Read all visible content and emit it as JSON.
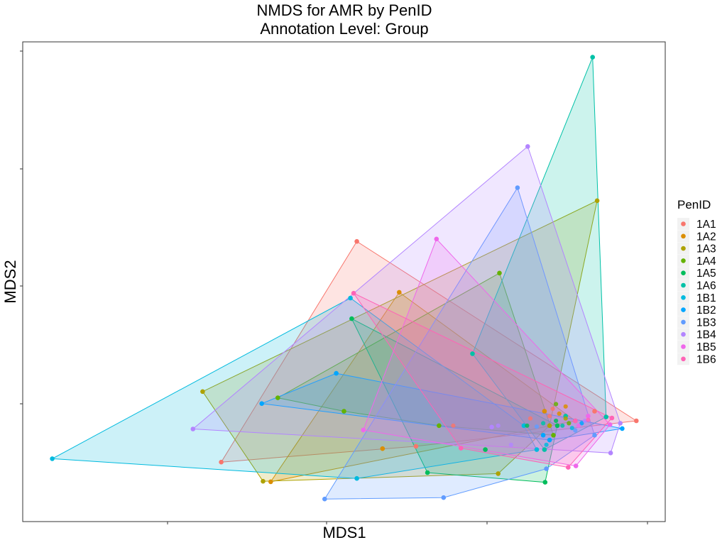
{
  "chart_data": {
    "type": "scatter",
    "title": "NMDS for AMR by PenID",
    "subtitle": "Annotation Level: Group",
    "xlabel": "MDS1",
    "ylabel": "MDS2",
    "xlim": [
      0,
      1000
    ],
    "ylim": [
      0,
      1000
    ],
    "x_tick_labels_shown": false,
    "y_tick_labels_shown": false,
    "grid": false,
    "hull": true,
    "legend": {
      "title": "PenID",
      "position": "right"
    },
    "series": [
      {
        "name": "1A1",
        "color": "#F8766D",
        "points": [
          [
            520,
            584
          ],
          [
            955,
            210
          ],
          [
            612,
            157
          ],
          [
            309,
            124
          ],
          [
            890,
            230
          ]
        ]
      },
      {
        "name": "1A2",
        "color": "#DB8E00",
        "points": [
          [
            586,
            478
          ],
          [
            560,
            152
          ],
          [
            386,
            83
          ],
          [
            860,
            210
          ],
          [
            812,
            230
          ]
        ]
      },
      {
        "name": "1A3",
        "color": "#AEA200",
        "points": [
          [
            280,
            271
          ],
          [
            374,
            84
          ],
          [
            740,
            100
          ],
          [
            894,
            669
          ],
          [
            820,
            200
          ]
        ]
      },
      {
        "name": "1A4",
        "color": "#64B200",
        "points": [
          [
            397,
            258
          ],
          [
            742,
            518
          ],
          [
            826,
            180
          ],
          [
            648,
            200
          ],
          [
            500,
            230
          ]
        ]
      },
      {
        "name": "1A5",
        "color": "#00BD5C",
        "points": [
          [
            512,
            423
          ],
          [
            630,
            102
          ],
          [
            813,
            82
          ],
          [
            832,
            200
          ],
          [
            720,
            150
          ]
        ]
      },
      {
        "name": "1A6",
        "color": "#00C1A7",
        "points": [
          [
            887,
            968
          ],
          [
            908,
            218
          ],
          [
            812,
            150
          ],
          [
            700,
            350
          ],
          [
            845,
            220
          ]
        ]
      },
      {
        "name": "1B1",
        "color": "#00BADE",
        "points": [
          [
            46,
            131
          ],
          [
            510,
            466
          ],
          [
            520,
            90
          ],
          [
            800,
            150
          ],
          [
            780,
            200
          ]
        ]
      },
      {
        "name": "1B2",
        "color": "#00A6FF",
        "points": [
          [
            372,
            246
          ],
          [
            488,
            309
          ],
          [
            933,
            194
          ],
          [
            820,
            170
          ],
          [
            810,
            180
          ]
        ]
      },
      {
        "name": "1B3",
        "color": "#619CFF",
        "points": [
          [
            470,
            47
          ],
          [
            655,
            50
          ],
          [
            770,
            696
          ],
          [
            815,
            110
          ],
          [
            890,
            180
          ]
        ]
      },
      {
        "name": "1B4",
        "color": "#B385FF",
        "points": [
          [
            265,
            193
          ],
          [
            786,
            782
          ],
          [
            930,
            205
          ],
          [
            915,
            143
          ],
          [
            730,
            197
          ]
        ]
      },
      {
        "name": "1B5",
        "color": "#EF67EB",
        "points": [
          [
            644,
            589
          ],
          [
            530,
            191
          ],
          [
            861,
            116
          ],
          [
            914,
            202
          ],
          [
            880,
            220
          ]
        ]
      },
      {
        "name": "1B6",
        "color": "#FF63B6",
        "points": [
          [
            515,
            476
          ],
          [
            682,
            153
          ],
          [
            849,
            113
          ],
          [
            917,
            216
          ],
          [
            860,
            210
          ]
        ]
      }
    ],
    "inner_points": [
      [
        820,
        220,
        "#F8766D"
      ],
      [
        835,
        225,
        "#DB8E00"
      ],
      [
        845,
        215,
        "#AEA200"
      ],
      [
        850,
        205,
        "#64B200"
      ],
      [
        830,
        210,
        "#00BD5C"
      ],
      [
        840,
        200,
        "#00C1A7"
      ],
      [
        855,
        195,
        "#00BADE"
      ],
      [
        870,
        205,
        "#00A6FF"
      ],
      [
        860,
        190,
        "#619CFF"
      ],
      [
        875,
        210,
        "#B385FF"
      ],
      [
        865,
        200,
        "#EF67EB"
      ],
      [
        880,
        212,
        "#FF63B6"
      ],
      [
        825,
        235,
        "#F8766D"
      ],
      [
        845,
        240,
        "#DB8E00"
      ],
      [
        810,
        205,
        "#00C1A7"
      ],
      [
        800,
        198,
        "#619CFF"
      ],
      [
        740,
        200,
        "#B385FF"
      ],
      [
        670,
        200,
        "#F8766D"
      ],
      [
        785,
        200,
        "#00BD5C"
      ],
      [
        815,
        160,
        "#00BADE"
      ],
      [
        760,
        160,
        "#B385FF"
      ],
      [
        790,
        215,
        "#F8766D"
      ],
      [
        830,
        245,
        "#64B200"
      ]
    ]
  }
}
